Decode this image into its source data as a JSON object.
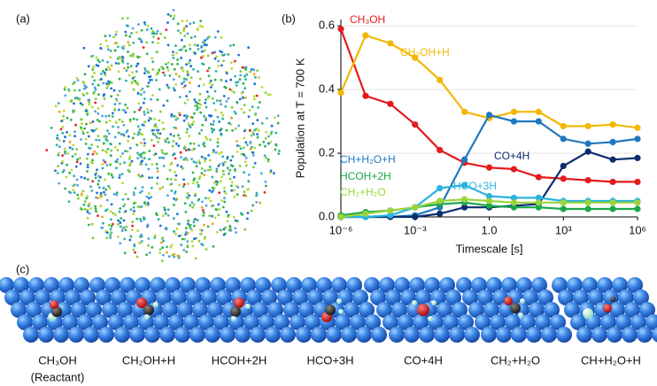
{
  "panels": {
    "a": {
      "label": "(a)"
    },
    "b": {
      "label": "(b)"
    },
    "c": {
      "label": "(c)",
      "items": [
        {
          "label": "CH₃OH",
          "note": "(Reactant)"
        },
        {
          "label": "CH₂OH+H"
        },
        {
          "label": "HCOH+2H"
        },
        {
          "label": "HCO+3H"
        },
        {
          "label": "CO+4H"
        },
        {
          "label": "CH₂+H₂O"
        },
        {
          "label": "CH+H₂O+H"
        }
      ]
    }
  },
  "chart_data": {
    "type": "line",
    "xlabel": "Timescale [s]",
    "ylabel": "Population at T = 700 K",
    "log_x": true,
    "grid": true,
    "x": [
      1e-06,
      1e-05,
      0.0001,
      0.001,
      0.01,
      0.1,
      1,
      10,
      100,
      1000,
      10000,
      100000,
      1000000
    ],
    "xlim": [
      1e-06,
      1000000
    ],
    "xticks": [
      {
        "value": 1e-06,
        "label": "10⁻⁶"
      },
      {
        "value": 0.001,
        "label": "10⁻³"
      },
      {
        "value": 1,
        "label": "1.0"
      },
      {
        "value": 1000,
        "label": "10³"
      },
      {
        "value": 1000000,
        "label": "10⁶"
      }
    ],
    "ylim": [
      0,
      0.62
    ],
    "yticks": [
      {
        "value": 0,
        "label": "0.0"
      },
      {
        "value": 0.2,
        "label": "0.2"
      },
      {
        "value": 0.4,
        "label": "0.4"
      },
      {
        "value": 0.6,
        "label": "0.6"
      }
    ],
    "series": [
      {
        "name": "CH₃OH",
        "color": "#e41a1c",
        "values": [
          0.59,
          0.38,
          0.355,
          0.29,
          0.21,
          0.17,
          0.155,
          0.15,
          0.125,
          0.12,
          0.115,
          0.11,
          0.11
        ]
      },
      {
        "name": "CH₂OH+H",
        "color": "#f2b705",
        "values": [
          0.39,
          0.57,
          0.545,
          0.5,
          0.43,
          0.33,
          0.31,
          0.33,
          0.33,
          0.285,
          0.285,
          0.29,
          0.28
        ]
      },
      {
        "name": "CH+H₂O+H",
        "color": "#1f78c0",
        "values": [
          0,
          0,
          0,
          0.005,
          0.03,
          0.18,
          0.32,
          0.3,
          0.3,
          0.245,
          0.23,
          0.235,
          0.245
        ]
      },
      {
        "name": "CO+4H",
        "color": "#0b2d6e",
        "values": [
          0,
          0,
          0,
          0,
          0.01,
          0.03,
          0.03,
          0.035,
          0.04,
          0.16,
          0.205,
          0.18,
          0.185
        ]
      },
      {
        "name": "HCO+3H",
        "color": "#29b3e0",
        "values": [
          0,
          0,
          0.005,
          0.03,
          0.09,
          0.1,
          0.065,
          0.06,
          0.06,
          0.05,
          0.05,
          0.05,
          0.05
        ]
      },
      {
        "name": "HCOH+2H",
        "color": "#1aa84a",
        "values": [
          0.005,
          0.015,
          0.02,
          0.03,
          0.04,
          0.045,
          0.035,
          0.03,
          0.03,
          0.025,
          0.025,
          0.025,
          0.025
        ]
      },
      {
        "name": "CH₂+H₂O",
        "color": "#9bd43a",
        "values": [
          0,
          0.01,
          0.02,
          0.03,
          0.05,
          0.055,
          0.05,
          0.045,
          0.045,
          0.045,
          0.045,
          0.045,
          0.045
        ]
      }
    ]
  }
}
